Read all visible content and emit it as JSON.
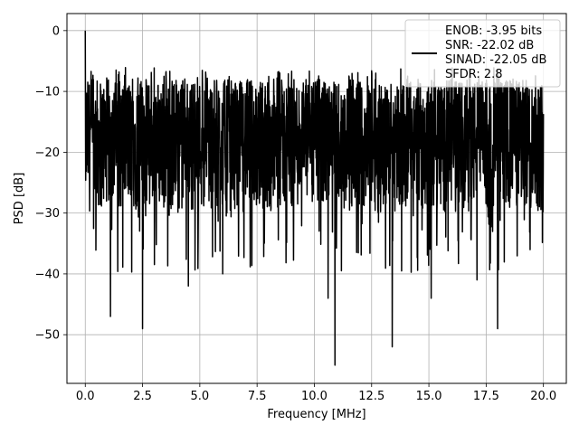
{
  "chart_data": {
    "type": "line",
    "title": "",
    "xlabel": "Frequency [MHz]",
    "ylabel": "PSD [dB]",
    "xlim": [
      -0.8,
      21.0
    ],
    "ylim": [
      -58,
      2.8
    ],
    "xticks": [
      0.0,
      2.5,
      5.0,
      7.5,
      10.0,
      12.5,
      15.0,
      17.5,
      20.0
    ],
    "xtick_labels": [
      "0.0",
      "2.5",
      "5.0",
      "7.5",
      "10.0",
      "12.5",
      "15.0",
      "17.5",
      "20.0"
    ],
    "yticks": [
      0,
      -10,
      -20,
      -30,
      -40,
      -50
    ],
    "ytick_labels": [
      "0",
      "−10",
      "−20",
      "−30",
      "−40",
      "−50"
    ],
    "grid": true,
    "legend_placement": "top-right",
    "series": [
      {
        "name": "ENOB: -3.95 bits\nSNR: -22.02 dB\nSINAD: -22.05 dB\nSFDR: 2.8",
        "color": "#000000",
        "x_range": [
          0,
          20
        ],
        "level_range": [
          -30,
          -8
        ],
        "mean_level": -20,
        "peak": {
          "x": 0.0,
          "y": 0.0
        },
        "notable_minima": [
          {
            "x": 1.1,
            "y": -47
          },
          {
            "x": 2.5,
            "y": -49
          },
          {
            "x": 4.5,
            "y": -42
          },
          {
            "x": 6.0,
            "y": -40
          },
          {
            "x": 10.6,
            "y": -44
          },
          {
            "x": 10.9,
            "y": -55
          },
          {
            "x": 13.4,
            "y": -52
          },
          {
            "x": 15.1,
            "y": -44
          },
          {
            "x": 17.1,
            "y": -41
          },
          {
            "x": 18.0,
            "y": -49
          }
        ]
      }
    ],
    "legend_lines": [
      "ENOB: -3.95 bits",
      "SNR: -22.02 dB",
      "SINAD: -22.05 dB",
      "SFDR: 2.8"
    ]
  }
}
